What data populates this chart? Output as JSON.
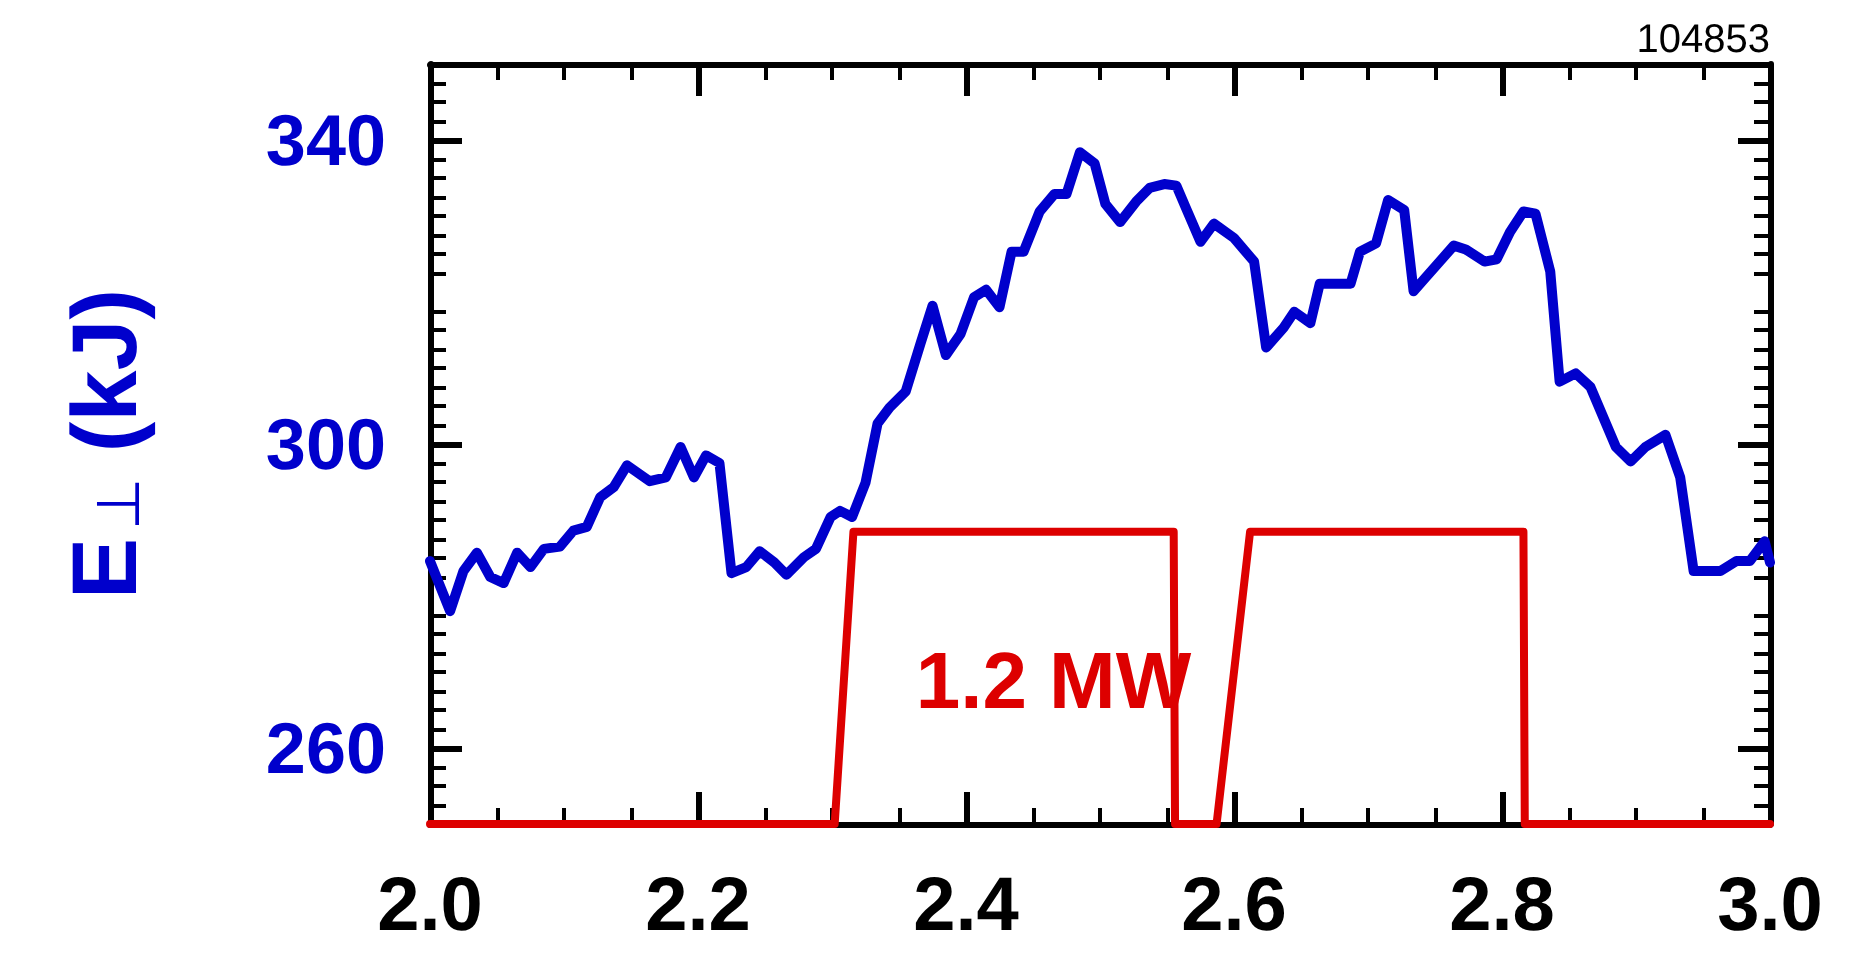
{
  "chart_data": {
    "type": "line",
    "ylabel": "E$_{⊥}$ (kJ)",
    "annotations": [
      "104853"
    ],
    "xlim": [
      2.0,
      3.0
    ],
    "xticks": [
      {
        "value": 2.0,
        "label": "2.0"
      },
      2.2,
      2.4,
      2.6,
      2.8,
      {
        "value": 3.0,
        "label": "3.0"
      }
    ],
    "ylim": [
      250,
      350
    ],
    "yticks": [
      260,
      300,
      340
    ],
    "y2lim": [
      0,
      3.12
    ],
    "grid": false,
    "marker": "none",
    "line_style": "solid",
    "series": [
      {
        "color": "#0000cc",
        "x": [
          2.0,
          2.015,
          2.025,
          2.035,
          2.045,
          2.055,
          2.065,
          2.075,
          2.085,
          2.097,
          2.107,
          2.117,
          2.127,
          2.137,
          2.147,
          2.164,
          2.176,
          2.187,
          2.197,
          2.206,
          2.216,
          2.225,
          2.236,
          2.246,
          2.257,
          2.266,
          2.279,
          2.288,
          2.299,
          2.306,
          2.315,
          2.325,
          2.334,
          2.343,
          2.355,
          2.366,
          2.375,
          2.385,
          2.396,
          2.406,
          2.415,
          2.425,
          2.434,
          2.443,
          2.455,
          2.466,
          2.475,
          2.485,
          2.496,
          2.504,
          2.515,
          2.527,
          2.537,
          2.548,
          2.557,
          2.564,
          2.575,
          2.585,
          2.6,
          2.615,
          2.624,
          2.637,
          2.645,
          2.657,
          2.664,
          2.687,
          2.694,
          2.706,
          2.715,
          2.727,
          2.734,
          2.743,
          2.764,
          2.773,
          2.787,
          2.796,
          2.806,
          2.816,
          2.825,
          2.836,
          2.843,
          2.855,
          2.866,
          2.885,
          2.896,
          2.907,
          2.922,
          2.933,
          2.943,
          2.963,
          2.975,
          2.985,
          2.996,
          3.0
        ],
        "values": [
          284.6,
          278,
          283.3,
          285.7,
          282.5,
          281.7,
          285.7,
          283.8,
          286.2,
          286.5,
          288.6,
          289.1,
          293,
          294.3,
          297.2,
          295.1,
          295.6,
          299.6,
          295.6,
          298.5,
          297.5,
          283,
          283.8,
          285.9,
          284.4,
          282.8,
          285.1,
          286.2,
          290.4,
          291.2,
          290.4,
          294.9,
          302.7,
          304.8,
          306.9,
          313.2,
          318.2,
          311.7,
          314.5,
          319.3,
          320.3,
          318,
          325.3,
          325.3,
          330.6,
          332.9,
          332.9,
          338.4,
          336.9,
          331.6,
          329.2,
          331.9,
          333.7,
          334.2,
          334,
          331.1,
          326.6,
          329,
          327.1,
          324,
          312.7,
          315.3,
          317.4,
          315.9,
          321.1,
          321.1,
          325.3,
          326.4,
          332.1,
          330.8,
          320.1,
          321.9,
          326.1,
          325.6,
          324,
          324.3,
          327.9,
          330.6,
          330.3,
          322.7,
          308.2,
          309.3,
          307.5,
          299.6,
          297.7,
          299.6,
          301.2,
          295.6,
          283.3,
          283.3,
          284.6,
          284.6,
          287.2,
          284.4
        ]
      },
      {
        "color": "#dd0000",
        "axis": "y2",
        "x": [
          2.0,
          2.302,
          2.316,
          2.555,
          2.556,
          2.587,
          2.612,
          2.816,
          2.817,
          3.0
        ],
        "values": [
          0,
          0,
          1.2,
          1.2,
          0,
          0,
          1.2,
          1.2,
          0,
          0
        ],
        "value_labels": [
          null,
          null,
          "1.2 MW",
          null,
          null,
          null,
          null,
          null,
          null,
          null
        ]
      }
    ]
  }
}
